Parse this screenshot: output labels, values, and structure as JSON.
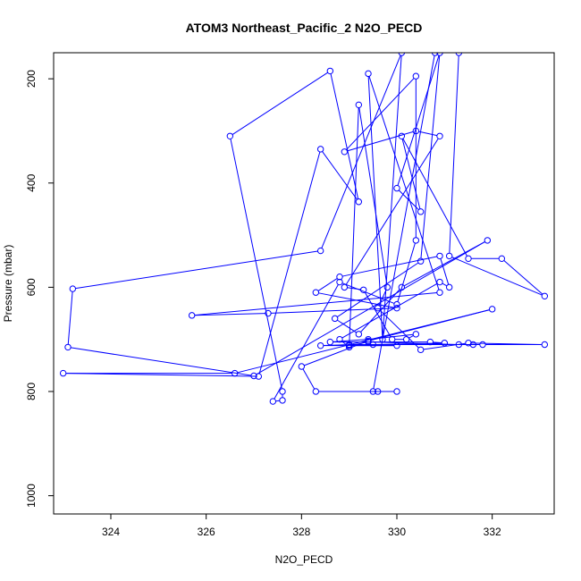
{
  "chart_data": {
    "type": "line",
    "title": "ATOM3 Northeast_Pacific_2 N2O_PECD",
    "xlabel": "N2O_PECD",
    "ylabel": "Pressure (mbar)",
    "xlim": [
      322.8,
      333.3
    ],
    "ylim": [
      1035,
      150
    ],
    "y_reversed": true,
    "xticks": [
      324,
      326,
      328,
      330,
      332
    ],
    "yticks": [
      200,
      400,
      600,
      800,
      1000
    ],
    "grid": false,
    "marker": "open-circle",
    "colors": {
      "series": "#0000ff",
      "axis": "#000000"
    },
    "series": [
      {
        "values": [
          [
            330.8,
            150
          ],
          [
            329.5,
            800
          ],
          [
            330.0,
            800
          ],
          [
            329.6,
            800
          ],
          [
            328.3,
            800
          ],
          [
            328.0,
            752
          ],
          [
            329.4,
            703
          ],
          [
            332.0,
            642
          ],
          [
            326.6,
            765
          ],
          [
            323.0,
            765
          ],
          [
            327.1,
            771
          ],
          [
            328.4,
            335
          ],
          [
            329.2,
            436
          ],
          [
            328.6,
            185
          ],
          [
            326.5,
            310
          ],
          [
            327.6,
            800
          ],
          [
            327.6,
            817
          ],
          [
            327.4,
            819
          ],
          [
            328.8,
            590
          ],
          [
            330.0,
            633
          ],
          [
            330.4,
            510
          ],
          [
            330.4,
            195
          ],
          [
            328.9,
            340
          ],
          [
            330.4,
            300
          ],
          [
            330.9,
            310
          ],
          [
            328.9,
            600
          ],
          [
            329.3,
            605
          ],
          [
            329.9,
            700
          ],
          [
            330.2,
            700
          ],
          [
            330.4,
            690
          ],
          [
            329.4,
            700
          ],
          [
            328.6,
            705
          ],
          [
            330.7,
            705
          ],
          [
            331.0,
            707
          ],
          [
            329.5,
            710
          ],
          [
            331.6,
            710
          ],
          [
            331.3,
            710
          ],
          [
            329.4,
            705
          ],
          [
            329.0,
            712
          ],
          [
            330.0,
            712
          ],
          [
            328.4,
            712
          ],
          [
            329.0,
            710
          ],
          [
            331.8,
            710
          ],
          [
            333.1,
            710
          ],
          [
            331.5,
            707
          ],
          [
            330.5,
            720
          ],
          [
            329.6,
            640
          ],
          [
            329.8,
            600
          ],
          [
            329.2,
            250
          ],
          [
            329.0,
            715
          ],
          [
            328.8,
            700
          ],
          [
            330.9,
            590
          ],
          [
            331.1,
            600
          ],
          [
            330.9,
            540
          ],
          [
            328.8,
            580
          ],
          [
            328.3,
            610
          ],
          [
            330.0,
            640
          ],
          [
            327.3,
            650
          ],
          [
            325.7,
            654
          ],
          [
            330.9,
            610
          ],
          [
            329.4,
            190
          ],
          [
            329.7,
            700
          ],
          [
            330.1,
            150
          ],
          [
            328.4,
            530
          ],
          [
            323.2,
            603
          ],
          [
            323.1,
            715
          ],
          [
            327.0,
            770
          ],
          [
            331.9,
            510
          ],
          [
            330.1,
            600
          ],
          [
            329.2,
            690
          ],
          [
            328.7,
            660
          ],
          [
            330.5,
            550
          ],
          [
            330.9,
            150
          ],
          [
            330.0,
            410
          ],
          [
            330.5,
            455
          ],
          [
            330.1,
            310
          ],
          [
            331.5,
            545
          ],
          [
            332.2,
            545
          ],
          [
            333.1,
            617
          ],
          [
            331.1,
            540
          ],
          [
            331.3,
            150
          ]
        ]
      }
    ]
  }
}
